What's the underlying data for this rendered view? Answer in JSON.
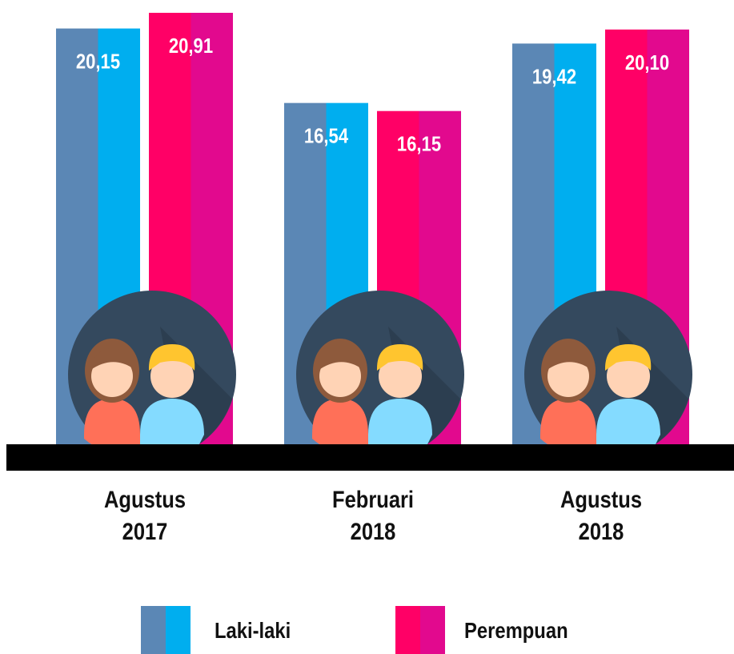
{
  "chart_data": {
    "type": "bar",
    "categories": [
      "Agustus 2017",
      "Februari 2018",
      "Agustus 2018"
    ],
    "series": [
      {
        "name": "Laki-laki",
        "colors": [
          "#5b87b5",
          "#00aeef"
        ],
        "values": [
          20.15,
          16.54,
          19.42
        ],
        "value_labels": [
          "20,15",
          "16,54",
          "19,42"
        ]
      },
      {
        "name": "Perempuan",
        "colors": [
          "#ff0066",
          "#e2098e"
        ],
        "values": [
          20.91,
          16.15,
          20.1
        ],
        "value_labels": [
          "20,91",
          "16,15",
          "20,10"
        ]
      }
    ],
    "legend": "bottom"
  }
}
